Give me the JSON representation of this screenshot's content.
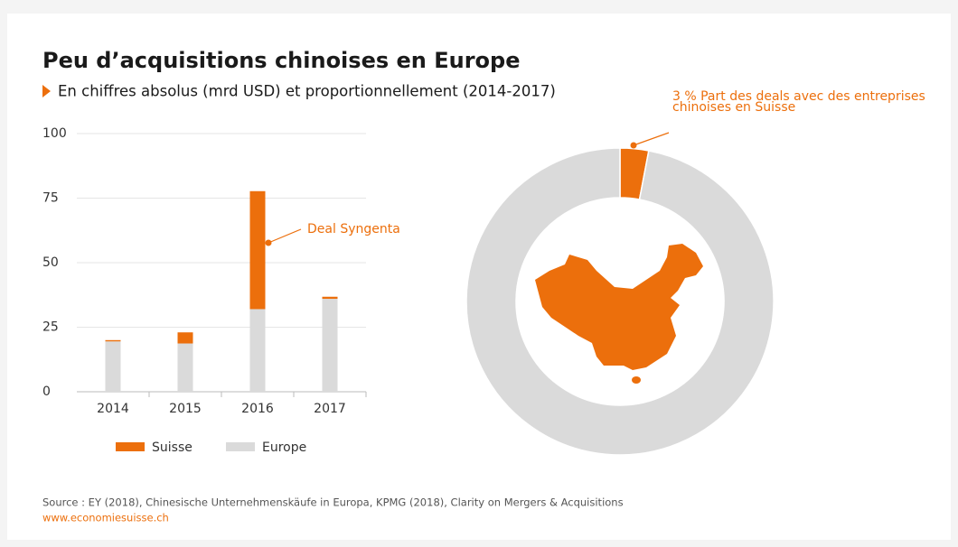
{
  "chart_data": [
    {
      "type": "bar",
      "title": "Peu d’acquisitions chinoises en Europe",
      "subtitle": "En chiffres absolus (mrd USD) et proportionnellement (2014-2017)",
      "categories": [
        "2014",
        "2015",
        "2016",
        "2017"
      ],
      "series": [
        {
          "name": "Europe",
          "color": "#dadada",
          "values": [
            19.5,
            18.7,
            32,
            36
          ]
        },
        {
          "name": "Suisse",
          "color": "#ec6f0c",
          "values": [
            0.5,
            4.3,
            45.7,
            0.8
          ]
        }
      ],
      "stacked": true,
      "ylim": [
        0,
        100
      ],
      "yticks": [
        0,
        25,
        50,
        75,
        100
      ],
      "grid": true,
      "annotation": "Deal Syngenta"
    },
    {
      "type": "donut",
      "values": [
        3,
        97
      ],
      "colors": [
        "#ec6f0c",
        "#dadada"
      ],
      "annotation": "3 % Part des deals avec des entreprises chinoises en Suisse"
    }
  ],
  "source": "Source : EY (2018), Chinesische Unternehmenskäufe in Europa, KPMG (2018), Clarity on Mergers & Acquisitions",
  "url": "www.economiesuisse.ch"
}
